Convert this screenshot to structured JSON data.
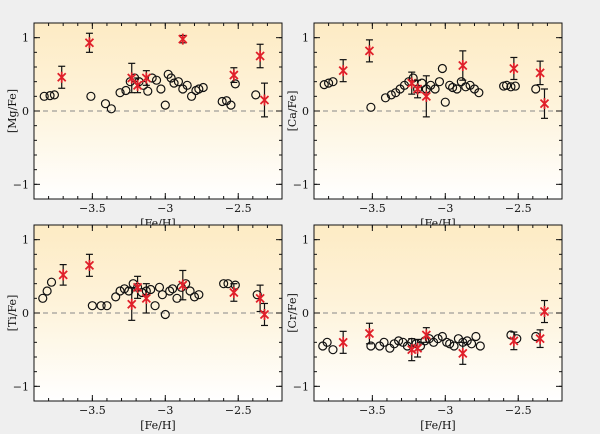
{
  "colors": {
    "background": "#efefef",
    "panel_top": "#fdebc4",
    "panel_bottom": "#ffffff",
    "open_marker": "#111111",
    "star_marker": "#e0202a",
    "errorbar": "#111111",
    "zero_line": "#888888"
  },
  "chart_data": [
    {
      "type": "scatter",
      "id": "mg",
      "xlabel": "[Fe/H]",
      "ylabel": "[Mg/Fe]",
      "xlim": [
        -3.9,
        -2.2
      ],
      "ylim": [
        -1.2,
        1.2
      ],
      "xticks": [
        -3.5,
        -3,
        -2.5
      ],
      "xtick_labels": [
        "−3.5",
        "−3",
        "−2.5"
      ],
      "yticks": [
        -1,
        0,
        1
      ],
      "ytick_labels": [
        "−1",
        "0",
        "1"
      ],
      "reference_line": 0,
      "series": [
        {
          "name": "circles",
          "marker": "open-circle",
          "x": [
            -3.83,
            -3.79,
            -3.76,
            -3.51,
            -3.41,
            -3.37,
            -3.31,
            -3.27,
            -3.24,
            -3.21,
            -3.18,
            -3.15,
            -3.12,
            -3.09,
            -3.06,
            -3.03,
            -3.0,
            -2.98,
            -2.96,
            -2.94,
            -2.91,
            -2.88,
            -2.85,
            -2.82,
            -2.79,
            -2.77,
            -2.74,
            -2.61,
            -2.58,
            -2.55,
            -2.52,
            -2.38
          ],
          "y": [
            0.2,
            0.21,
            0.22,
            0.2,
            0.1,
            0.03,
            0.25,
            0.28,
            0.4,
            0.45,
            0.4,
            0.35,
            0.27,
            0.45,
            0.42,
            0.3,
            0.08,
            0.5,
            0.45,
            0.38,
            0.4,
            0.3,
            0.35,
            0.2,
            0.28,
            0.3,
            0.32,
            0.13,
            0.14,
            0.08,
            0.37,
            0.22
          ]
        },
        {
          "name": "stars",
          "marker": "red-asterisk",
          "x": [
            -3.71,
            -3.52,
            -3.23,
            -3.19,
            -3.13,
            -2.88,
            -2.53,
            -2.35,
            -2.32
          ],
          "y": [
            0.46,
            0.93,
            0.45,
            0.35,
            0.45,
            0.98,
            0.49,
            0.75,
            0.15
          ],
          "err": [
            0.15,
            0.13,
            0.2,
            0.1,
            0.1,
            0.05,
            0.1,
            0.16,
            0.23
          ]
        }
      ]
    },
    {
      "type": "scatter",
      "id": "ca",
      "xlabel": "[Fe/H]",
      "ylabel": "[Ca/Fe]",
      "xlim": [
        -3.9,
        -2.2
      ],
      "ylim": [
        -1.2,
        1.2
      ],
      "xticks": [
        -3.5,
        -3,
        -2.5
      ],
      "xtick_labels": [
        "−3.5",
        "−3",
        "−2.5"
      ],
      "yticks": [
        -1,
        0,
        1
      ],
      "ytick_labels": [
        "−1",
        "0",
        "1"
      ],
      "reference_line": 0,
      "series": [
        {
          "name": "circles",
          "marker": "open-circle",
          "x": [
            -3.83,
            -3.8,
            -3.77,
            -3.51,
            -3.41,
            -3.37,
            -3.34,
            -3.31,
            -3.28,
            -3.25,
            -3.22,
            -3.19,
            -3.16,
            -3.13,
            -3.1,
            -3.07,
            -3.04,
            -3.02,
            -3.0,
            -2.97,
            -2.95,
            -2.92,
            -2.89,
            -2.86,
            -2.83,
            -2.8,
            -2.77,
            -2.6,
            -2.58,
            -2.55,
            -2.52,
            -2.38
          ],
          "y": [
            0.36,
            0.38,
            0.4,
            0.05,
            0.18,
            0.22,
            0.25,
            0.3,
            0.35,
            0.4,
            0.45,
            0.3,
            0.38,
            0.3,
            0.35,
            0.3,
            0.4,
            0.58,
            0.12,
            0.35,
            0.32,
            0.3,
            0.4,
            0.33,
            0.35,
            0.3,
            0.25,
            0.34,
            0.35,
            0.33,
            0.34,
            0.3
          ]
        },
        {
          "name": "stars",
          "marker": "red-asterisk",
          "x": [
            -3.7,
            -3.52,
            -3.23,
            -3.19,
            -3.13,
            -2.88,
            -2.53,
            -2.35,
            -2.32
          ],
          "y": [
            0.55,
            0.82,
            0.38,
            0.3,
            0.2,
            0.62,
            0.58,
            0.52,
            0.1
          ],
          "err": [
            0.15,
            0.15,
            0.15,
            0.12,
            0.28,
            0.2,
            0.15,
            0.16,
            0.2
          ]
        }
      ]
    },
    {
      "type": "scatter",
      "id": "ti",
      "xlabel": "[Fe/H]",
      "ylabel": "[Ti/Fe]",
      "xlim": [
        -3.9,
        -2.2
      ],
      "ylim": [
        -1.2,
        1.2
      ],
      "xticks": [
        -3.5,
        -3,
        -2.5
      ],
      "xtick_labels": [
        "−3.5",
        "−3",
        "−2.5"
      ],
      "yticks": [
        -1,
        0,
        1
      ],
      "ytick_labels": [
        "−1",
        "0",
        "1"
      ],
      "reference_line": 0,
      "series": [
        {
          "name": "circles",
          "marker": "open-circle",
          "x": [
            -3.84,
            -3.81,
            -3.78,
            -3.5,
            -3.44,
            -3.4,
            -3.34,
            -3.31,
            -3.28,
            -3.25,
            -3.22,
            -3.19,
            -3.16,
            -3.13,
            -3.1,
            -3.07,
            -3.04,
            -3.02,
            -3.0,
            -2.97,
            -2.95,
            -2.92,
            -2.89,
            -2.86,
            -2.83,
            -2.8,
            -2.77,
            -2.6,
            -2.57,
            -2.52,
            -2.37
          ],
          "y": [
            0.2,
            0.3,
            0.42,
            0.1,
            0.1,
            0.1,
            0.22,
            0.3,
            0.33,
            0.3,
            0.4,
            0.35,
            0.28,
            0.3,
            0.32,
            0.1,
            0.35,
            0.25,
            -0.02,
            0.3,
            0.33,
            0.2,
            0.35,
            0.4,
            0.3,
            0.22,
            0.25,
            0.4,
            0.4,
            0.38,
            0.25
          ]
        },
        {
          "name": "stars",
          "marker": "red-asterisk",
          "x": [
            -3.7,
            -3.52,
            -3.23,
            -3.19,
            -3.13,
            -2.88,
            -2.53,
            -2.35,
            -2.32
          ],
          "y": [
            0.52,
            0.65,
            0.12,
            0.35,
            0.2,
            0.38,
            0.28,
            0.2,
            -0.02
          ],
          "err": [
            0.14,
            0.15,
            0.22,
            0.15,
            0.2,
            0.2,
            0.12,
            0.18,
            0.15
          ]
        }
      ]
    },
    {
      "type": "scatter",
      "id": "cr",
      "xlabel": "[Fe/H]",
      "ylabel": "[Cr/Fe]",
      "xlim": [
        -3.9,
        -2.2
      ],
      "ylim": [
        -1.2,
        1.2
      ],
      "xticks": [
        -3.5,
        -3,
        -2.5
      ],
      "xtick_labels": [
        "−3.5",
        "−3",
        "−2.5"
      ],
      "yticks": [
        -1,
        0,
        1
      ],
      "ytick_labels": [
        "−1",
        "0",
        "1"
      ],
      "reference_line": 0,
      "series": [
        {
          "name": "circles",
          "marker": "open-circle",
          "x": [
            -3.84,
            -3.81,
            -3.77,
            -3.51,
            -3.45,
            -3.42,
            -3.38,
            -3.35,
            -3.32,
            -3.29,
            -3.26,
            -3.23,
            -3.2,
            -3.17,
            -3.14,
            -3.11,
            -3.08,
            -3.05,
            -3.02,
            -2.99,
            -2.97,
            -2.94,
            -2.91,
            -2.88,
            -2.85,
            -2.82,
            -2.79,
            -2.76,
            -2.55,
            -2.51,
            -2.38
          ],
          "y": [
            -0.45,
            -0.4,
            -0.5,
            -0.45,
            -0.45,
            -0.4,
            -0.48,
            -0.42,
            -0.38,
            -0.4,
            -0.45,
            -0.4,
            -0.42,
            -0.45,
            -0.38,
            -0.35,
            -0.4,
            -0.35,
            -0.32,
            -0.4,
            -0.42,
            -0.45,
            -0.35,
            -0.4,
            -0.38,
            -0.42,
            -0.32,
            -0.45,
            -0.3,
            -0.35,
            -0.32
          ]
        },
        {
          "name": "stars",
          "marker": "red-asterisk",
          "x": [
            -3.7,
            -3.52,
            -3.23,
            -3.19,
            -3.13,
            -2.88,
            -2.53,
            -2.35,
            -2.32
          ],
          "y": [
            -0.4,
            -0.28,
            -0.5,
            -0.48,
            -0.3,
            -0.55,
            -0.38,
            -0.35,
            0.02
          ],
          "err": [
            0.15,
            0.14,
            0.15,
            0.12,
            0.1,
            0.15,
            0.12,
            0.12,
            0.15
          ]
        }
      ]
    }
  ]
}
